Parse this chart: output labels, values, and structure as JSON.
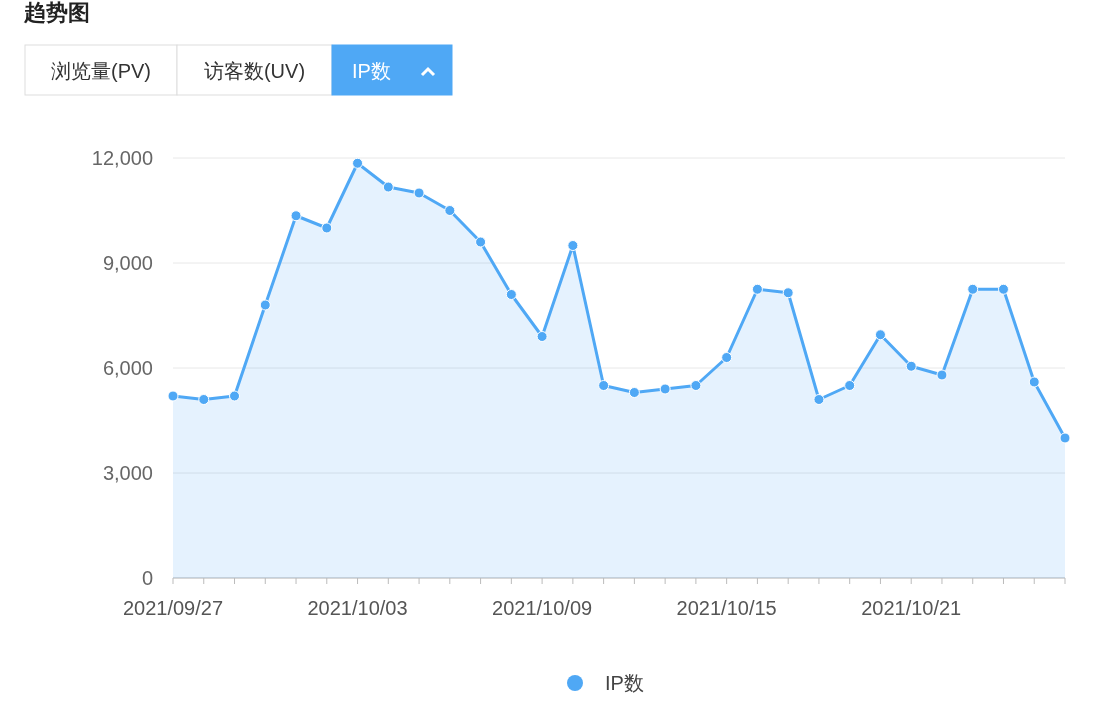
{
  "chart_data": {
    "type": "area",
    "title": "趋势图",
    "annotations": [
      "浏览量(PV)",
      "访客数(UV)",
      "IP数"
    ],
    "categories": [
      "2021/09/27",
      null,
      null,
      null,
      null,
      null,
      "2021/10/03",
      null,
      null,
      null,
      null,
      null,
      "2021/10/09",
      null,
      null,
      null,
      null,
      null,
      "2021/10/15",
      null,
      null,
      null,
      null,
      null,
      "2021/10/21",
      null,
      null,
      null,
      null,
      null
    ],
    "series": [
      {
        "name": "IP数",
        "color": "#4fa8f5",
        "values": [
          5200,
          5100,
          5200,
          7800,
          10350,
          10000,
          11850,
          11170,
          11000,
          10500,
          9600,
          8100,
          6900,
          9500,
          5500,
          5300,
          5400,
          5500,
          6300,
          8250,
          8150,
          5100,
          5500,
          6950,
          6050,
          5800,
          8250,
          8250,
          5600,
          4000
        ]
      }
    ],
    "ylim": [
      0,
      12000
    ],
    "yticks": [
      {
        "value": 0,
        "label": "0"
      },
      {
        "value": 3000,
        "label": "3,000"
      },
      {
        "value": 6000,
        "label": "6,000"
      },
      {
        "value": 9000,
        "label": "9,000"
      },
      {
        "value": 12000,
        "label": "12,000"
      }
    ],
    "grid": "y",
    "legend": "bottom",
    "marker": "circle",
    "line_style": "solid"
  }
}
